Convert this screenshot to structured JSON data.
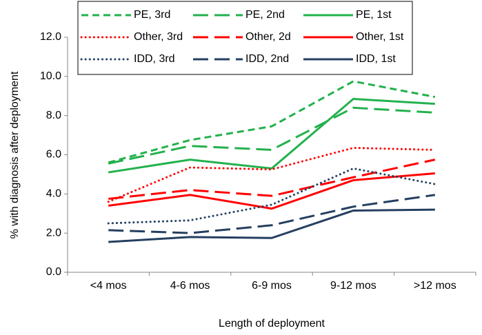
{
  "chart_data": {
    "type": "line",
    "y_label": "% with diagnosis after deployment",
    "x_label": "Length of deployment",
    "categories": [
      "<4 mos",
      "4-6 mos",
      "6-9 mos",
      "9-12 mos",
      ">12 mos"
    ],
    "series": [
      {
        "name": "PE, 3rd",
        "color": "#22b14c",
        "linestyle": "dashed",
        "values": [
          5.6,
          6.75,
          7.45,
          9.75,
          8.95
        ]
      },
      {
        "name": "PE, 2nd",
        "color": "#22b14c",
        "linestyle": "longdash",
        "values": [
          5.55,
          6.45,
          6.25,
          8.4,
          8.15
        ]
      },
      {
        "name": "PE, 1st",
        "color": "#22b14c",
        "linestyle": "solid",
        "values": [
          5.1,
          5.75,
          5.3,
          8.85,
          8.6
        ]
      },
      {
        "name": "Other, 3rd",
        "color": "#ff0000",
        "linestyle": "dotted",
        "values": [
          3.6,
          5.35,
          5.25,
          6.35,
          6.25
        ]
      },
      {
        "name": "Other, 2d",
        "color": "#ff0000",
        "linestyle": "longdash",
        "values": [
          3.75,
          4.2,
          3.9,
          4.85,
          5.75
        ]
      },
      {
        "name": "Other, 1st",
        "color": "#ff0000",
        "linestyle": "solid",
        "values": [
          3.4,
          3.95,
          3.25,
          4.7,
          5.05
        ]
      },
      {
        "name": "IDD, 3rd",
        "color": "#243f60",
        "linestyle": "dotted",
        "values": [
          2.5,
          2.65,
          3.45,
          5.3,
          4.5
        ]
      },
      {
        "name": "IDD, 2nd",
        "color": "#243f60",
        "linestyle": "longdash",
        "values": [
          2.15,
          2.0,
          2.4,
          3.35,
          3.95
        ]
      },
      {
        "name": "IDD, 1st",
        "color": "#243f60",
        "linestyle": "solid",
        "values": [
          1.55,
          1.8,
          1.75,
          3.15,
          3.2
        ]
      }
    ],
    "ylim": [
      0,
      12
    ],
    "yticks": [
      {
        "value": 0,
        "label": "0.0"
      },
      {
        "value": 2,
        "label": "2.0"
      },
      {
        "value": 4,
        "label": "4.0"
      },
      {
        "value": 6,
        "label": "6.0"
      },
      {
        "value": 8,
        "label": "8.0"
      },
      {
        "value": 10,
        "label": "10.0"
      },
      {
        "value": 12,
        "label": "12.0"
      }
    ],
    "grid": false,
    "legend": "top"
  }
}
